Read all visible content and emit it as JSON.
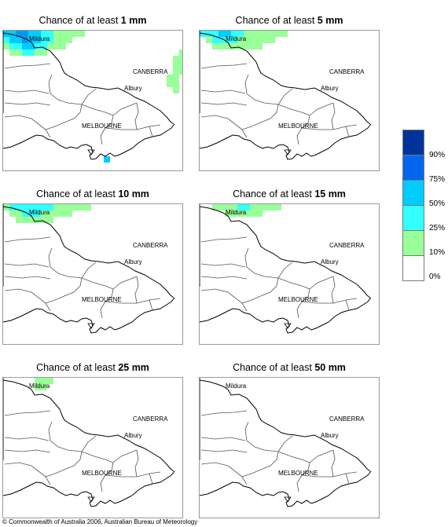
{
  "title_prefix": "Chance of at least ",
  "panels": [
    {
      "amount": "1 mm",
      "cells": [
        [
          0,
          0,
          "#00ccff"
        ],
        [
          1,
          0,
          "#00ccff"
        ],
        [
          2,
          0,
          "#0099ee"
        ],
        [
          3,
          0,
          "#0099ee"
        ],
        [
          4,
          0,
          "#00ccff"
        ],
        [
          5,
          0,
          "#00ccff"
        ],
        [
          6,
          0,
          "#33ffff"
        ],
        [
          7,
          0,
          "#33ffff"
        ],
        [
          8,
          0,
          "#99ff99"
        ],
        [
          9,
          0,
          "#99ff99"
        ],
        [
          10,
          0,
          "#99ff99"
        ],
        [
          11,
          0,
          "#99ff99"
        ],
        [
          12,
          0,
          "#99ff99"
        ],
        [
          0,
          1,
          "#33ffff"
        ],
        [
          1,
          1,
          "#00ccff"
        ],
        [
          2,
          1,
          "#00ccff"
        ],
        [
          3,
          1,
          "#0099ee"
        ],
        [
          4,
          1,
          "#00ccff"
        ],
        [
          5,
          1,
          "#00ccff"
        ],
        [
          6,
          1,
          "#33ffff"
        ],
        [
          7,
          1,
          "#33ffff"
        ],
        [
          8,
          1,
          "#99ff99"
        ],
        [
          9,
          1,
          "#99ff99"
        ],
        [
          10,
          1,
          "#99ff99"
        ],
        [
          0,
          2,
          "#99ff99"
        ],
        [
          1,
          2,
          "#33ffff"
        ],
        [
          2,
          2,
          "#33ffff"
        ],
        [
          3,
          2,
          "#00ccff"
        ],
        [
          4,
          2,
          "#00ccff"
        ],
        [
          5,
          2,
          "#33ffff"
        ],
        [
          6,
          2,
          "#33ffff"
        ],
        [
          7,
          2,
          "#99ff99"
        ],
        [
          8,
          2,
          "#99ff99"
        ],
        [
          9,
          2,
          "#99ff99"
        ],
        [
          1,
          3,
          "#99ff99"
        ],
        [
          2,
          3,
          "#99ff99"
        ],
        [
          3,
          3,
          "#33ffff"
        ],
        [
          4,
          3,
          "#33ffff"
        ],
        [
          5,
          3,
          "#99ff99"
        ],
        [
          6,
          3,
          "#99ff99"
        ],
        [
          28,
          3,
          "#99ff99"
        ],
        [
          27,
          4,
          "#99ff99"
        ],
        [
          28,
          4,
          "#99ff99"
        ],
        [
          27,
          5,
          "#99ff99"
        ],
        [
          28,
          5,
          "#99ff99"
        ],
        [
          27,
          6,
          "#99ff99"
        ],
        [
          28,
          6,
          "#99ff99"
        ],
        [
          26,
          7,
          "#99ff99"
        ],
        [
          27,
          7,
          "#99ff99"
        ],
        [
          26,
          8,
          "#99ff99"
        ],
        [
          27,
          8,
          "#99ff99"
        ],
        [
          27,
          9,
          "#99ff99"
        ],
        [
          16,
          20,
          "#00ccff"
        ]
      ]
    },
    {
      "amount": "5 mm",
      "cells": [
        [
          0,
          0,
          "#33ffff"
        ],
        [
          1,
          0,
          "#33ffff"
        ],
        [
          2,
          0,
          "#33ffff"
        ],
        [
          3,
          0,
          "#00ccff"
        ],
        [
          4,
          0,
          "#00ccff"
        ],
        [
          5,
          0,
          "#33ffff"
        ],
        [
          6,
          0,
          "#33ffff"
        ],
        [
          7,
          0,
          "#99ff99"
        ],
        [
          8,
          0,
          "#99ff99"
        ],
        [
          9,
          0,
          "#99ff99"
        ],
        [
          10,
          0,
          "#99ff99"
        ],
        [
          11,
          0,
          "#99ff99"
        ],
        [
          12,
          0,
          "#99ff99"
        ],
        [
          13,
          0,
          "#99ff99"
        ],
        [
          1,
          1,
          "#99ff99"
        ],
        [
          2,
          1,
          "#33ffff"
        ],
        [
          3,
          1,
          "#33ffff"
        ],
        [
          4,
          1,
          "#33ffff"
        ],
        [
          5,
          1,
          "#33ffff"
        ],
        [
          6,
          1,
          "#99ff99"
        ],
        [
          7,
          1,
          "#99ff99"
        ],
        [
          8,
          1,
          "#99ff99"
        ],
        [
          9,
          1,
          "#99ff99"
        ],
        [
          10,
          1,
          "#99ff99"
        ],
        [
          11,
          1,
          "#99ff99"
        ],
        [
          2,
          2,
          "#99ff99"
        ],
        [
          3,
          2,
          "#99ff99"
        ],
        [
          4,
          2,
          "#99ff99"
        ],
        [
          5,
          2,
          "#99ff99"
        ],
        [
          6,
          2,
          "#99ff99"
        ],
        [
          7,
          2,
          "#99ff99"
        ],
        [
          8,
          2,
          "#99ff99"
        ],
        [
          9,
          2,
          "#99ff99"
        ]
      ]
    },
    {
      "amount": "10 mm",
      "cells": [
        [
          0,
          0,
          "#99ff99"
        ],
        [
          1,
          0,
          "#33ffff"
        ],
        [
          2,
          0,
          "#33ffff"
        ],
        [
          3,
          0,
          "#33ffff"
        ],
        [
          4,
          0,
          "#33ffff"
        ],
        [
          5,
          0,
          "#33ffff"
        ],
        [
          6,
          0,
          "#33ffff"
        ],
        [
          7,
          0,
          "#33ffff"
        ],
        [
          8,
          0,
          "#99ff99"
        ],
        [
          9,
          0,
          "#99ff99"
        ],
        [
          10,
          0,
          "#99ff99"
        ],
        [
          11,
          0,
          "#99ff99"
        ],
        [
          12,
          0,
          "#99ff99"
        ],
        [
          13,
          0,
          "#99ff99"
        ],
        [
          1,
          1,
          "#99ff99"
        ],
        [
          2,
          1,
          "#99ff99"
        ],
        [
          3,
          1,
          "#33ffff"
        ],
        [
          4,
          1,
          "#33ffff"
        ],
        [
          5,
          1,
          "#33ffff"
        ],
        [
          6,
          1,
          "#99ff99"
        ],
        [
          7,
          1,
          "#99ff99"
        ],
        [
          8,
          1,
          "#99ff99"
        ],
        [
          9,
          1,
          "#99ff99"
        ],
        [
          10,
          1,
          "#99ff99"
        ],
        [
          2,
          2,
          "#99ff99"
        ],
        [
          3,
          2,
          "#99ff99"
        ],
        [
          4,
          2,
          "#99ff99"
        ],
        [
          5,
          2,
          "#99ff99"
        ],
        [
          6,
          2,
          "#99ff99"
        ],
        [
          7,
          2,
          "#99ff99"
        ]
      ]
    },
    {
      "amount": "15 mm",
      "cells": [
        [
          2,
          0,
          "#99ff99"
        ],
        [
          3,
          0,
          "#99ff99"
        ],
        [
          4,
          0,
          "#99ff99"
        ],
        [
          5,
          0,
          "#99ff99"
        ],
        [
          6,
          0,
          "#33ffff"
        ],
        [
          7,
          0,
          "#33ffff"
        ],
        [
          8,
          0,
          "#99ff99"
        ],
        [
          9,
          0,
          "#99ff99"
        ],
        [
          10,
          0,
          "#99ff99"
        ],
        [
          11,
          0,
          "#99ff99"
        ],
        [
          12,
          0,
          "#99ff99"
        ],
        [
          4,
          1,
          "#99ff99"
        ],
        [
          5,
          1,
          "#99ff99"
        ],
        [
          6,
          1,
          "#99ff99"
        ],
        [
          7,
          1,
          "#99ff99"
        ],
        [
          8,
          1,
          "#99ff99"
        ],
        [
          9,
          1,
          "#99ff99"
        ]
      ]
    },
    {
      "amount": "25 mm",
      "cells": [
        [
          5,
          0,
          "#99ff99"
        ],
        [
          6,
          0,
          "#99ff99"
        ],
        [
          7,
          0,
          "#99ff99"
        ],
        [
          5,
          1,
          "#99ff99"
        ],
        [
          6,
          1,
          "#99ff99"
        ]
      ]
    },
    {
      "amount": "50 mm",
      "cells": []
    }
  ],
  "map_labels": {
    "mildura": "Mildura",
    "canberra": "CANBERRA",
    "albury": "Albury",
    "melbourne": "MELBOURNE"
  },
  "legend": [
    {
      "color": "#003399",
      "label": "90%"
    },
    {
      "color": "#0066ee",
      "label": "75%"
    },
    {
      "color": "#00ccff",
      "label": "50%"
    },
    {
      "color": "#33ffff",
      "label": "25%"
    },
    {
      "color": "#99ff99",
      "label": "10%"
    },
    {
      "color": "#ffffff",
      "label": "0%"
    }
  ],
  "copyright": "© Commonwealth of Australia 2006, Australian Bureau of Meteorology"
}
